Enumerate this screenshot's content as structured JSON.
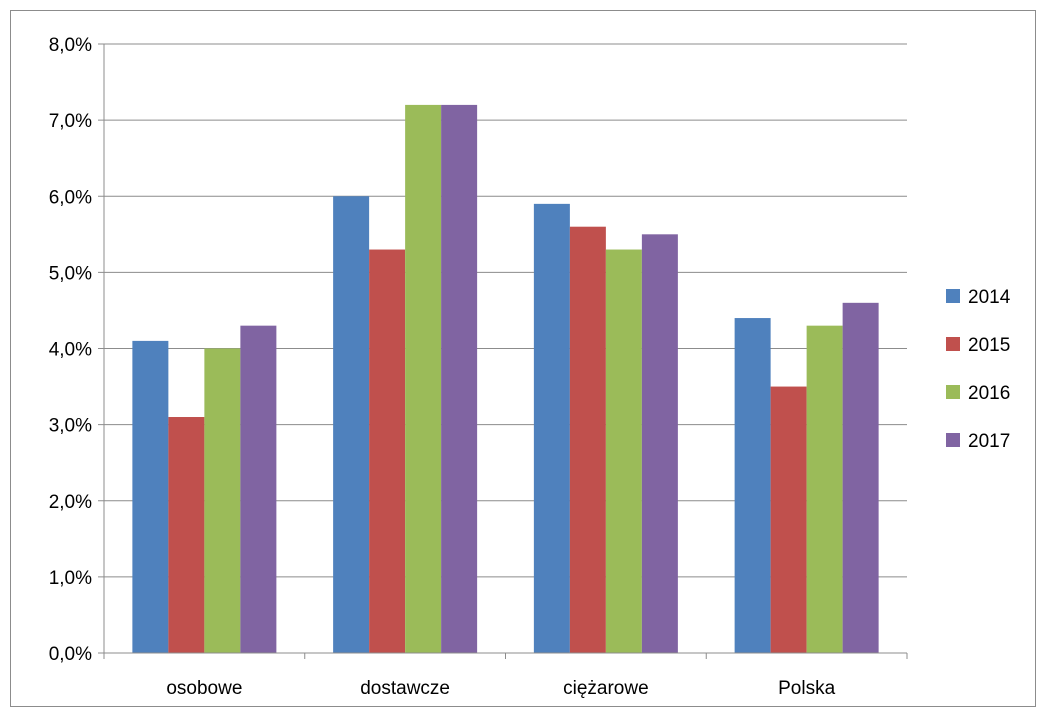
{
  "chart_data": {
    "type": "bar",
    "categories": [
      "osobowe",
      "dostawcze",
      "ciężarowe",
      "Polska"
    ],
    "series": [
      {
        "name": "2014",
        "values": [
          4.1,
          6.0,
          5.9,
          4.4
        ]
      },
      {
        "name": "2015",
        "values": [
          3.1,
          5.3,
          5.6,
          3.5
        ]
      },
      {
        "name": "2016",
        "values": [
          4.0,
          7.2,
          5.3,
          4.3
        ]
      },
      {
        "name": "2017",
        "values": [
          4.3,
          7.2,
          5.5,
          4.6
        ]
      }
    ],
    "ylim": [
      0,
      8
    ],
    "yticks": [
      {
        "value": 0,
        "label": "0,0%"
      },
      {
        "value": 1,
        "label": "1,0%"
      },
      {
        "value": 2,
        "label": "2,0%"
      },
      {
        "value": 3,
        "label": "3,0%"
      },
      {
        "value": 4,
        "label": "4,0%"
      },
      {
        "value": 5,
        "label": "5,0%"
      },
      {
        "value": 6,
        "label": "6,0%"
      },
      {
        "value": 7,
        "label": "7,0%"
      },
      {
        "value": 8,
        "label": "8,0%"
      }
    ],
    "grid": true,
    "legend_position": "right",
    "colors": [
      "#4f81bd",
      "#c0504d",
      "#9bbb59",
      "#8064a2"
    ]
  }
}
